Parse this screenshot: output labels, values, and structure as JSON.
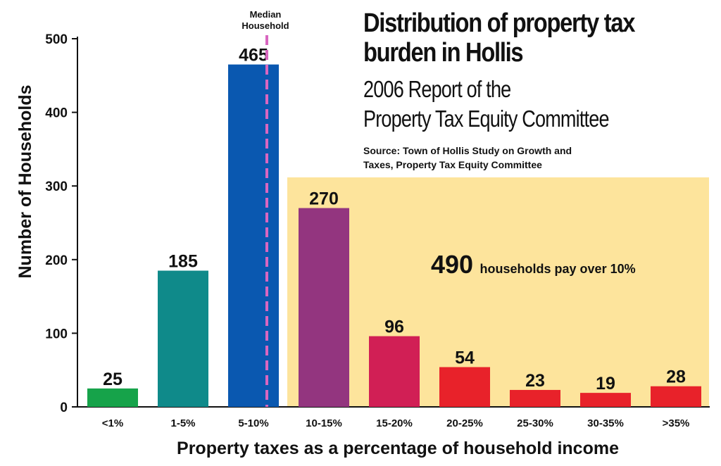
{
  "title_lines": [
    "Distribution of property tax",
    "burden in Hollis"
  ],
  "subtitle_lines": [
    "2006 Report of the",
    "Property Tax Equity Committee"
  ],
  "source_lines": [
    "Source: Town of Hollis Study on Growth and",
    "Taxes, Property Tax Equity Committee"
  ],
  "median_label_lines": [
    "Median",
    "Household"
  ],
  "annotation": {
    "number": "490",
    "text": "households pay over 10%"
  },
  "colors": {
    "highlight_box": "#fde49c",
    "median_line": "#d966c0",
    "axis": "#111111"
  },
  "chart_data": {
    "type": "bar",
    "title": "Distribution of property tax burden in Hollis",
    "subtitle": "2006 Report of the Property Tax Equity Committee",
    "xlabel": "Property taxes as a percentage of household income",
    "ylabel": "Number of Households",
    "ylim": [
      0,
      500
    ],
    "yticks": [
      "0",
      "100",
      "200",
      "300",
      "400",
      "500"
    ],
    "ytick_values": [
      0,
      100,
      200,
      300,
      400,
      500
    ],
    "categories": [
      "<1%",
      "1-5%",
      "5-10%",
      "10-15%",
      "15-20%",
      "20-25%",
      "25-30%",
      "30-35%",
      ">35%"
    ],
    "values": [
      25,
      185,
      465,
      270,
      96,
      54,
      23,
      19,
      28
    ],
    "value_labels": [
      "25",
      "185",
      "465",
      "270",
      "96",
      "54",
      "23",
      "19",
      "28"
    ],
    "bar_colors": [
      "#16a34a",
      "#0f8a8a",
      "#0a58b0",
      "#93357f",
      "#d11f55",
      "#e8222a",
      "#e8222a",
      "#e8222a",
      "#e8222a"
    ],
    "grid": false,
    "median_category": "5-10%",
    "highlight_categories_from": "10-15%"
  }
}
